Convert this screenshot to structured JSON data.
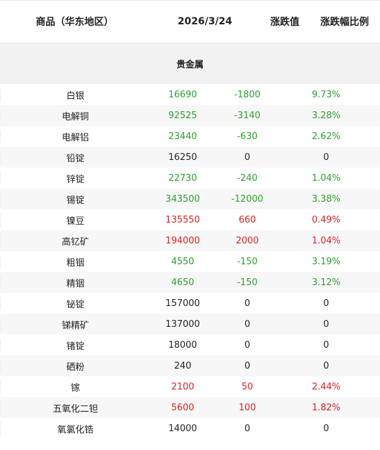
{
  "header": {
    "col_name": "商品（华东地区）",
    "col_date": "2026/3/24",
    "col_change": "涨跌值",
    "col_pct": "涨跌幅比例"
  },
  "section_title": "贵金属",
  "colors": {
    "up": "#e02020",
    "down": "#2ca02c",
    "flat": "#222222"
  },
  "rows": [
    {
      "name": "白银",
      "price": "16690",
      "change": "-1800",
      "pct": "9.73%",
      "trend": "down"
    },
    {
      "name": "电解铜",
      "price": "92525",
      "change": "-3140",
      "pct": "3.28%",
      "trend": "down"
    },
    {
      "name": "电解铝",
      "price": "23440",
      "change": "-630",
      "pct": "2.62%",
      "trend": "down"
    },
    {
      "name": "铅锭",
      "price": "16250",
      "change": "0",
      "pct": "0",
      "trend": "flat"
    },
    {
      "name": "锌锭",
      "price": "22730",
      "change": "-240",
      "pct": "1.04%",
      "trend": "down"
    },
    {
      "name": "锡锭",
      "price": "343500",
      "change": "-12000",
      "pct": "3.38%",
      "trend": "down"
    },
    {
      "name": "镍豆",
      "price": "135550",
      "change": "660",
      "pct": "0.49%",
      "trend": "up"
    },
    {
      "name": "高钇矿",
      "price": "194000",
      "change": "2000",
      "pct": "1.04%",
      "trend": "up"
    },
    {
      "name": "粗铟",
      "price": "4550",
      "change": "-150",
      "pct": "3.19%",
      "trend": "down"
    },
    {
      "name": "精铟",
      "price": "4650",
      "change": "-150",
      "pct": "3.12%",
      "trend": "down"
    },
    {
      "name": "铋锭",
      "price": "157000",
      "change": "0",
      "pct": "0",
      "trend": "flat"
    },
    {
      "name": "锑精矿",
      "price": "137000",
      "change": "0",
      "pct": "0",
      "trend": "flat"
    },
    {
      "name": "锗锭",
      "price": "18000",
      "change": "0",
      "pct": "0",
      "trend": "flat"
    },
    {
      "name": "硒粉",
      "price": "240",
      "change": "0",
      "pct": "0",
      "trend": "flat"
    },
    {
      "name": "镓",
      "price": "2100",
      "change": "50",
      "pct": "2.44%",
      "trend": "up"
    },
    {
      "name": "五氧化二钽",
      "price": "5600",
      "change": "100",
      "pct": "1.82%",
      "trend": "up"
    },
    {
      "name": "氧氯化锆",
      "price": "14000",
      "change": "0",
      "pct": "0",
      "trend": "flat"
    }
  ]
}
